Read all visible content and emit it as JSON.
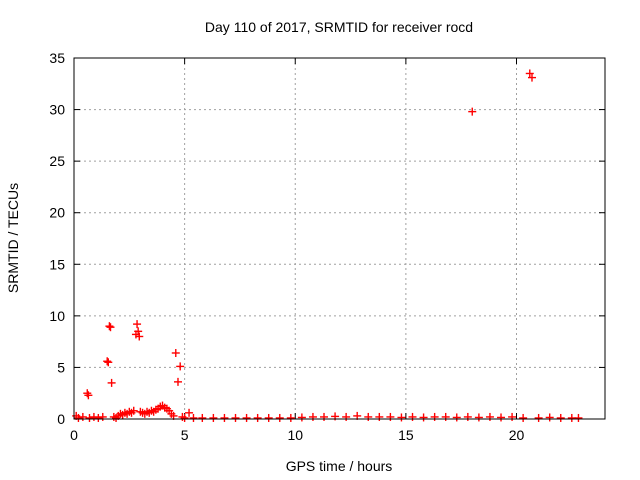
{
  "chart_data": {
    "type": "scatter",
    "title": "Day 110 of 2017, SRMTID for receiver rocd",
    "xlabel": "GPS time / hours",
    "ylabel": "SRMTID / TECUs",
    "xlim": [
      0,
      24
    ],
    "ylim": [
      0,
      35
    ],
    "xticks": [
      "0",
      "5",
      "10",
      "15",
      "20"
    ],
    "xtick_values": [
      0,
      5,
      10,
      15,
      20
    ],
    "yticks": [
      "0",
      "5",
      "10",
      "15",
      "20",
      "25",
      "30",
      "35"
    ],
    "ytick_values": [
      0,
      5,
      10,
      15,
      20,
      25,
      30,
      35
    ],
    "grid": true,
    "marker": "plus",
    "color": "#ff0000",
    "series": [
      {
        "name": "SRMTID",
        "points": [
          [
            0.1,
            0.3
          ],
          [
            0.2,
            0.1
          ],
          [
            0.4,
            0.2
          ],
          [
            0.6,
            2.5
          ],
          [
            0.65,
            2.3
          ],
          [
            0.7,
            0.1
          ],
          [
            0.9,
            0.2
          ],
          [
            1.1,
            0.1
          ],
          [
            1.3,
            0.2
          ],
          [
            1.5,
            5.6
          ],
          [
            1.55,
            5.5
          ],
          [
            1.6,
            9.0
          ],
          [
            1.65,
            8.9
          ],
          [
            1.7,
            3.5
          ],
          [
            1.8,
            0.2
          ],
          [
            1.9,
            0.1
          ],
          [
            2.0,
            0.3
          ],
          [
            2.1,
            0.5
          ],
          [
            2.2,
            0.4
          ],
          [
            2.3,
            0.6
          ],
          [
            2.4,
            0.5
          ],
          [
            2.5,
            0.7
          ],
          [
            2.6,
            0.6
          ],
          [
            2.7,
            0.8
          ],
          [
            2.8,
            8.2
          ],
          [
            2.85,
            9.2
          ],
          [
            2.9,
            8.5
          ],
          [
            2.95,
            8.0
          ],
          [
            3.0,
            0.7
          ],
          [
            3.1,
            0.6
          ],
          [
            3.2,
            0.5
          ],
          [
            3.3,
            0.7
          ],
          [
            3.4,
            0.6
          ],
          [
            3.5,
            0.8
          ],
          [
            3.6,
            0.7
          ],
          [
            3.7,
            0.9
          ],
          [
            3.8,
            1.0
          ],
          [
            3.9,
            1.2
          ],
          [
            4.0,
            1.3
          ],
          [
            4.1,
            1.1
          ],
          [
            4.2,
            1.0
          ],
          [
            4.3,
            0.8
          ],
          [
            4.4,
            0.5
          ],
          [
            4.5,
            0.3
          ],
          [
            4.6,
            6.4
          ],
          [
            4.7,
            3.6
          ],
          [
            4.8,
            5.1
          ],
          [
            4.9,
            0.2
          ],
          [
            5.0,
            0.1
          ],
          [
            5.2,
            0.6
          ],
          [
            5.4,
            0.1
          ],
          [
            5.8,
            0.1
          ],
          [
            6.3,
            0.1
          ],
          [
            6.8,
            0.1
          ],
          [
            7.3,
            0.1
          ],
          [
            7.8,
            0.1
          ],
          [
            8.3,
            0.1
          ],
          [
            8.8,
            0.1
          ],
          [
            9.3,
            0.1
          ],
          [
            9.8,
            0.1
          ],
          [
            10.3,
            0.15
          ],
          [
            10.8,
            0.2
          ],
          [
            11.3,
            0.2
          ],
          [
            11.8,
            0.25
          ],
          [
            12.3,
            0.2
          ],
          [
            12.8,
            0.3
          ],
          [
            13.3,
            0.2
          ],
          [
            13.8,
            0.2
          ],
          [
            14.3,
            0.2
          ],
          [
            14.8,
            0.15
          ],
          [
            15.3,
            0.2
          ],
          [
            15.8,
            0.15
          ],
          [
            16.3,
            0.2
          ],
          [
            16.8,
            0.2
          ],
          [
            17.3,
            0.15
          ],
          [
            17.8,
            0.2
          ],
          [
            18.0,
            29.8
          ],
          [
            18.3,
            0.15
          ],
          [
            18.8,
            0.2
          ],
          [
            19.3,
            0.15
          ],
          [
            19.8,
            0.2
          ],
          [
            20.3,
            0.1
          ],
          [
            20.6,
            33.5
          ],
          [
            20.7,
            33.1
          ],
          [
            21.0,
            0.1
          ],
          [
            21.5,
            0.15
          ],
          [
            22.0,
            0.1
          ],
          [
            22.5,
            0.1
          ],
          [
            22.8,
            0.1
          ]
        ]
      }
    ]
  }
}
